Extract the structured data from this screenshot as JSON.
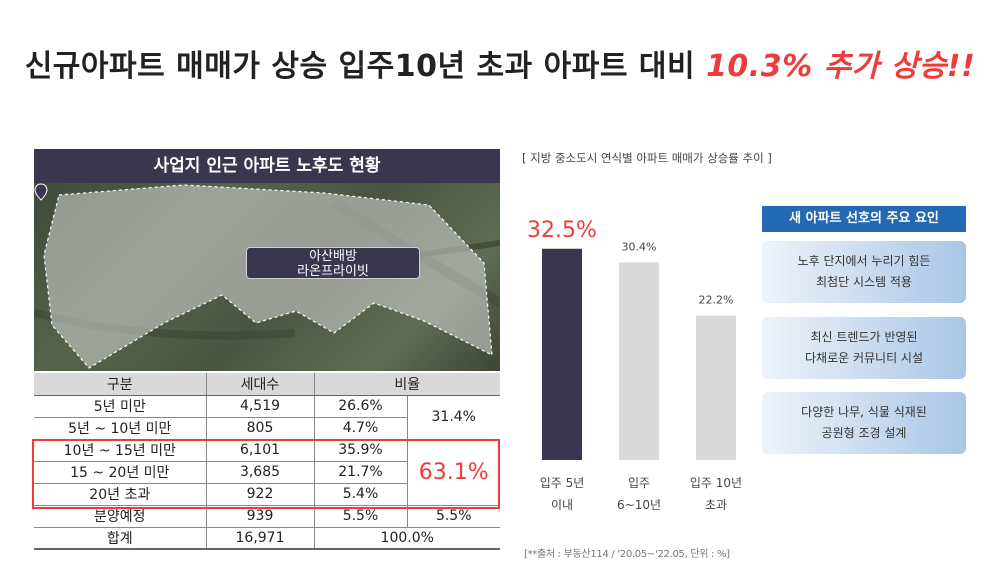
{
  "title": {
    "main": "신규아파트 매매가 상승 입주10년 초과 아파트 대비 ",
    "highlight": "10.3% 추가 상승!!"
  },
  "map": {
    "header": "사업지 인근 아파트 노후도 현황",
    "callout_line1": "아산배방",
    "callout_line2": "라온프라이빗",
    "pin_icon": "location-pin-icon"
  },
  "table": {
    "headers": [
      "구분",
      "세대수",
      "비율"
    ],
    "rows": [
      {
        "label": "5년 미만",
        "count": "4,519",
        "ratio": "26.6%"
      },
      {
        "label": "5년 ~ 10년 미만",
        "count": "805",
        "ratio": "4.7%"
      },
      {
        "label": "10년 ~ 15년 미만",
        "count": "6,101",
        "ratio": "35.9%"
      },
      {
        "label": "15 ~ 20년 미만",
        "count": "3,685",
        "ratio": "21.7%"
      },
      {
        "label": "20년 초과",
        "count": "922",
        "ratio": "5.4%"
      },
      {
        "label": "분양예정",
        "count": "939",
        "ratio": "5.5%",
        "group": "5.5%"
      },
      {
        "label": "합계",
        "count": "16,971",
        "ratio": "100.0%"
      }
    ],
    "group_under10": "31.4%",
    "group_over10": "63.1%",
    "highlight_color": "#ee3b3b"
  },
  "chart_caption": "[ 지방 중소도시 연식별 아파트 매매가 상승률 추이 ]",
  "chart_data": {
    "type": "bar",
    "categories": [
      [
        "입주 5년",
        "이내"
      ],
      [
        "입주",
        "6~10년"
      ],
      [
        "입주 10년",
        "초과"
      ]
    ],
    "values": [
      32.5,
      30.4,
      22.2
    ],
    "value_labels": [
      "32.5%",
      "30.4%",
      "22.2%"
    ],
    "ylim": [
      0,
      40
    ],
    "grid": false,
    "colors": [
      "#3b3650",
      "#d9d9d9",
      "#d9d9d9"
    ],
    "highlight_label_color": "#ee3b3b"
  },
  "source": "[**출처 : 부동산114 / '20.05~'22.05, 단위 : %]",
  "factors": {
    "header": "새 아파트 선호의 주요 요인",
    "items": [
      {
        "line1": "노후 단지에서 누리기 힘든",
        "line2": "최첨단 시스템 적용"
      },
      {
        "line1": "최신 트렌드가 반영된",
        "line2": "다채로운 커뮤니티 시설"
      },
      {
        "line1": "다양한 나무, 식물 식재된",
        "line2": "공원형 조경 설계"
      }
    ]
  }
}
